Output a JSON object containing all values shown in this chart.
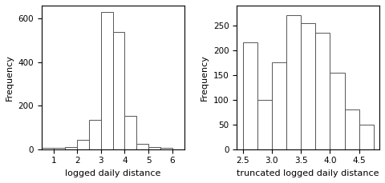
{
  "left": {
    "bin_edges": [
      0.5,
      1.0,
      1.5,
      2.0,
      2.5,
      3.0,
      3.5,
      4.0,
      4.5,
      5.0,
      5.5,
      6.0
    ],
    "frequencies": [
      5,
      5,
      10,
      45,
      135,
      630,
      540,
      155,
      25,
      10,
      5
    ],
    "xlabel": "logged daily distance",
    "ylabel": "Frequency",
    "xticks": [
      1,
      2,
      3,
      4,
      5,
      6
    ],
    "yticks": [
      0,
      200,
      400,
      600
    ],
    "xlim": [
      0.5,
      6.5
    ],
    "ylim": [
      0,
      660
    ]
  },
  "right": {
    "bin_edges": [
      2.5,
      2.75,
      3.0,
      3.25,
      3.5,
      3.75,
      4.0,
      4.25,
      4.5,
      4.75
    ],
    "frequencies": [
      215,
      100,
      175,
      270,
      255,
      235,
      155,
      80,
      50
    ],
    "xlabel": "truncated logged daily distance",
    "ylabel": "Frequency",
    "xticks": [
      2.5,
      3.0,
      3.5,
      4.0,
      4.5
    ],
    "yticks": [
      0,
      50,
      100,
      150,
      200,
      250
    ],
    "xlim": [
      2.4,
      4.85
    ],
    "ylim": [
      0,
      290
    ]
  },
  "bar_facecolor": "#ffffff",
  "bar_edgecolor": "#555555",
  "background_color": "#ffffff",
  "spine_color": "#000000",
  "tick_color": "#000000",
  "label_fontsize": 8,
  "tick_fontsize": 7.5
}
